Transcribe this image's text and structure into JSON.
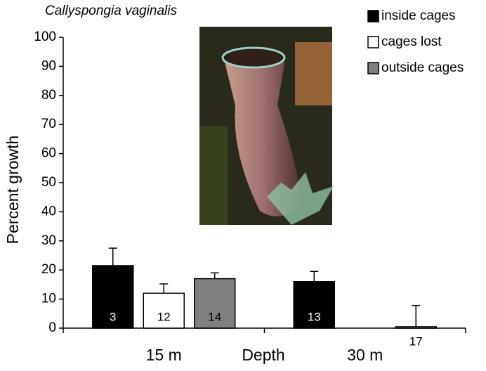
{
  "chart_data": {
    "type": "bar",
    "title": "Callyspongia vaginalis",
    "x_label": "Depth",
    "y_label": "Percent growth",
    "categories": [
      "15 m",
      "30 m"
    ],
    "series": [
      {
        "name": "inside cages",
        "color": "#000000",
        "values": [
          21.5,
          16
        ],
        "errors": [
          6,
          3.5
        ],
        "n": [
          3,
          13
        ]
      },
      {
        "name": "cages lost",
        "color": "#ffffff",
        "values": [
          12,
          null
        ],
        "errors": [
          3.2,
          null
        ],
        "n": [
          12,
          null
        ]
      },
      {
        "name": "outside cages",
        "color": "#808080",
        "values": [
          17,
          0.5
        ],
        "errors": [
          2,
          7.3
        ],
        "n": [
          14,
          17
        ]
      }
    ],
    "ylim": [
      0,
      100
    ],
    "yticks": [
      0,
      10,
      20,
      30,
      40,
      50,
      60,
      70,
      80,
      90,
      100
    ],
    "grid": false
  }
}
